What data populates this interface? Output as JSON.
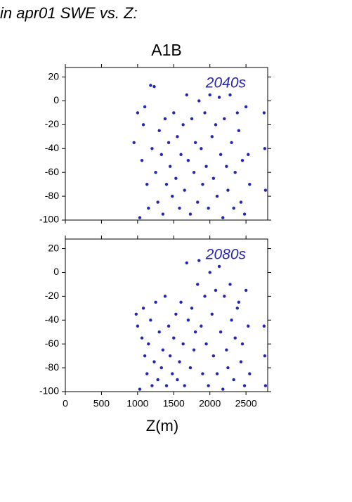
{
  "page_title": "in apr01 SWE vs. Z:",
  "chart_data": [
    {
      "type": "scatter",
      "title": "A1B",
      "annotation": "2040s",
      "color": "#2626b4",
      "xlim": [
        0,
        2800
      ],
      "ylim": [
        -100,
        28
      ],
      "show_xtick_labels": false,
      "xticks": [
        0,
        500,
        1000,
        1500,
        2000,
        2500
      ],
      "yticks": [
        -100,
        -80,
        -60,
        -40,
        -20,
        0,
        20
      ],
      "x": [
        950,
        1000,
        1030,
        1060,
        1080,
        1100,
        1130,
        1150,
        1180,
        1200,
        1230,
        1250,
        1280,
        1300,
        1330,
        1350,
        1380,
        1400,
        1430,
        1450,
        1480,
        1500,
        1530,
        1550,
        1580,
        1600,
        1630,
        1650,
        1680,
        1700,
        1730,
        1750,
        1780,
        1800,
        1830,
        1850,
        1880,
        1900,
        1930,
        1950,
        1980,
        2000,
        2030,
        2050,
        2080,
        2100,
        2130,
        2150,
        2180,
        2200,
        2230,
        2250,
        2280,
        2300,
        2330,
        2350,
        2380,
        2400,
        2430,
        2450,
        2480,
        2500,
        2530,
        2550,
        2750,
        2760,
        2770
      ],
      "values": [
        -35,
        -10,
        -98,
        -50,
        -20,
        -5,
        -70,
        -90,
        13,
        -40,
        12,
        -60,
        -85,
        -25,
        -45,
        -95,
        -15,
        -70,
        -35,
        -55,
        -80,
        -10,
        -65,
        -30,
        -90,
        -45,
        -20,
        -75,
        5,
        -50,
        -95,
        -15,
        -60,
        -35,
        -85,
        0,
        -40,
        -70,
        -10,
        -55,
        -90,
        5,
        -30,
        -65,
        -20,
        -80,
        3,
        -45,
        -98,
        -15,
        -55,
        -75,
        5,
        -35,
        -90,
        -60,
        -10,
        -25,
        -85,
        -50,
        -95,
        -5,
        -45,
        -70,
        -10,
        -40,
        -75
      ]
    },
    {
      "type": "scatter",
      "annotation": "2080s",
      "color": "#2626b4",
      "xlabel": "Z(m)",
      "xlim": [
        0,
        2800
      ],
      "ylim": [
        -100,
        28
      ],
      "show_xtick_labels": true,
      "xticks": [
        0,
        500,
        1000,
        1500,
        2000,
        2500
      ],
      "yticks": [
        -100,
        -80,
        -60,
        -40,
        -20,
        0,
        20
      ],
      "x": [
        980,
        1000,
        1030,
        1060,
        1080,
        1100,
        1130,
        1150,
        1180,
        1200,
        1230,
        1250,
        1280,
        1300,
        1330,
        1350,
        1380,
        1400,
        1430,
        1450,
        1480,
        1500,
        1530,
        1550,
        1580,
        1600,
        1630,
        1650,
        1680,
        1700,
        1730,
        1750,
        1780,
        1800,
        1830,
        1850,
        1880,
        1900,
        1930,
        1950,
        1980,
        2000,
        2030,
        2050,
        2080,
        2100,
        2130,
        2150,
        2180,
        2200,
        2230,
        2250,
        2280,
        2300,
        2330,
        2350,
        2380,
        2400,
        2430,
        2450,
        2480,
        2500,
        2530,
        2550,
        2750,
        2760,
        2770
      ],
      "values": [
        -35,
        -45,
        -98,
        -55,
        -30,
        -70,
        -85,
        -60,
        -40,
        -95,
        -75,
        -25,
        -90,
        -50,
        -80,
        -65,
        -20,
        -95,
        -45,
        -70,
        -85,
        -55,
        -35,
        -90,
        -75,
        -25,
        -60,
        -95,
        8,
        -40,
        -80,
        -30,
        -65,
        -50,
        -10,
        10,
        -45,
        -85,
        -20,
        -60,
        -95,
        0,
        -35,
        -70,
        -15,
        -85,
        5,
        -50,
        -98,
        -20,
        -65,
        -80,
        -10,
        -40,
        -90,
        -55,
        -30,
        -25,
        -75,
        -60,
        -95,
        -15,
        -45,
        -85,
        -45,
        -70,
        -95
      ]
    }
  ]
}
